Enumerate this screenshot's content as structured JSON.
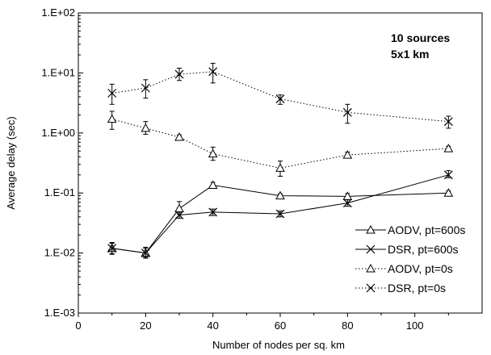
{
  "chart_data": {
    "type": "line",
    "title": "",
    "xlabel": "Number of nodes per sq. km",
    "ylabel": "Average delay (sec)",
    "xlim": [
      0,
      120
    ],
    "ylim": [
      0.001,
      100
    ],
    "yscale": "log",
    "x_ticks": [
      0,
      20,
      40,
      60,
      80,
      100
    ],
    "y_ticks": [
      {
        "value": 0.001,
        "label": "1.E-03"
      },
      {
        "value": 0.01,
        "label": "1.E-02"
      },
      {
        "value": 0.1,
        "label": "1.E-01"
      },
      {
        "value": 1,
        "label": "1.E+00"
      },
      {
        "value": 10,
        "label": "1.E+01"
      },
      {
        "value": 100,
        "label": "1.E+02"
      }
    ],
    "grid": false,
    "legend_position": "bottom-right",
    "annotations": [
      "10 sources",
      "5x1 km"
    ],
    "x": [
      10,
      20,
      30,
      40,
      60,
      80,
      110
    ],
    "series": [
      {
        "name": "AODV, pt=600s",
        "marker": "triangle",
        "line": "solid",
        "values": [
          0.012,
          0.01,
          0.055,
          0.135,
          0.09,
          0.088,
          0.1
        ],
        "err_low": [
          0.0095,
          0.0082,
          0.044,
          0.12,
          0.083,
          0.078,
          0.092
        ],
        "err_high": [
          0.015,
          0.0125,
          0.072,
          0.15,
          0.097,
          0.098,
          0.108
        ]
      },
      {
        "name": "DSR, pt=600s",
        "marker": "x",
        "line": "solid",
        "values": [
          0.012,
          0.01,
          0.043,
          0.048,
          0.045,
          0.068,
          0.2
        ],
        "err_low": [
          0.0098,
          0.0085,
          0.038,
          0.042,
          0.04,
          0.06,
          0.18
        ],
        "err_high": [
          0.0145,
          0.012,
          0.048,
          0.054,
          0.05,
          0.077,
          0.235
        ]
      },
      {
        "name": "AODV, pt=0s",
        "marker": "triangle",
        "line": "dotted",
        "values": [
          1.7,
          1.2,
          0.85,
          0.45,
          0.26,
          0.43,
          0.55
        ],
        "err_low": [
          1.15,
          0.95,
          0.78,
          0.35,
          0.19,
          0.39,
          0.5
        ],
        "err_high": [
          2.3,
          1.55,
          0.93,
          0.58,
          0.34,
          0.48,
          0.6
        ]
      },
      {
        "name": "DSR, pt=0s",
        "marker": "x",
        "line": "dotted",
        "values": [
          4.6,
          5.6,
          9.5,
          10.5,
          3.7,
          2.2,
          1.55
        ],
        "err_low": [
          3.0,
          3.8,
          7.5,
          6.8,
          3.0,
          1.45,
          1.2
        ],
        "err_high": [
          6.5,
          7.7,
          12.0,
          14.5,
          4.3,
          3.0,
          1.9
        ]
      }
    ]
  }
}
